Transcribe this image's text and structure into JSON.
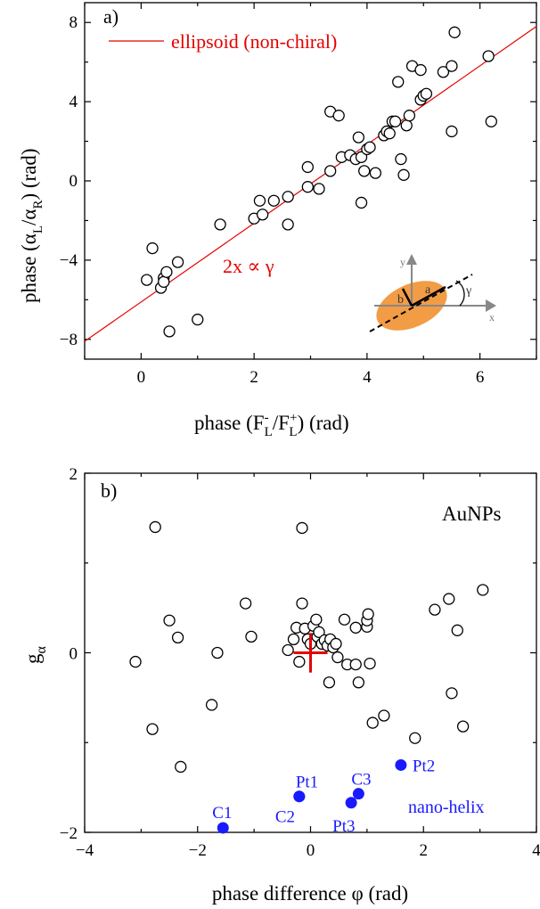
{
  "chart_data": [
    {
      "type": "scatter",
      "panel_label": "a)",
      "xlabel": {
        "pre": "phase (F",
        "sup1": "-",
        "sub1": "L",
        "mid": "/F",
        "sup2": "+",
        "sub2": "L",
        "post": ") (rad)"
      },
      "ylabel": {
        "pre": "phase (α",
        "sub1": "L",
        "mid": "/α",
        "sub2": "R",
        "post": ") (rad)"
      },
      "xlim": [
        -1,
        7
      ],
      "ylim": [
        -9,
        9
      ],
      "xticks": [
        0,
        2,
        4,
        6
      ],
      "xtick_labels": [
        "0",
        "2",
        "4",
        "6"
      ],
      "yticks": [
        -8,
        -4,
        0,
        4,
        8
      ],
      "ytick_labels": [
        "−8",
        "−4",
        "0",
        "4",
        "8"
      ],
      "legend": {
        "location": "top-left",
        "entries": [
          {
            "label": "ellipsoid (non-chiral)",
            "color": "#e60000",
            "marker": "line"
          }
        ]
      },
      "annotation": "2x ∝ γ",
      "fit_line": {
        "color": "#e60000",
        "x": [
          -1,
          7
        ],
        "y": [
          -8.1,
          7.8
        ]
      },
      "inset": {
        "label_y": "y",
        "label_x": "x",
        "label_a": "a",
        "label_b": "b",
        "label_gamma": "γ",
        "ellipse_color": "#f29c46",
        "axis_color": "#888888"
      },
      "points": [
        [
          0.1,
          -5.0
        ],
        [
          0.2,
          -3.4
        ],
        [
          0.35,
          -5.4
        ],
        [
          0.4,
          -4.9
        ],
        [
          0.4,
          -5.1
        ],
        [
          0.45,
          -4.6
        ],
        [
          0.5,
          -7.6
        ],
        [
          0.65,
          -4.1
        ],
        [
          1.0,
          -7.0
        ],
        [
          1.4,
          -2.2
        ],
        [
          2.0,
          -1.9
        ],
        [
          2.1,
          -1.0
        ],
        [
          2.15,
          -1.7
        ],
        [
          2.35,
          -1.0
        ],
        [
          2.6,
          -2.2
        ],
        [
          2.6,
          -0.8
        ],
        [
          2.95,
          -0.3
        ],
        [
          2.95,
          0.7
        ],
        [
          3.15,
          -0.4
        ],
        [
          3.35,
          0.5
        ],
        [
          3.35,
          3.5
        ],
        [
          3.5,
          3.3
        ],
        [
          3.55,
          1.2
        ],
        [
          3.7,
          1.3
        ],
        [
          3.8,
          1.1
        ],
        [
          3.85,
          2.2
        ],
        [
          3.9,
          1.2
        ],
        [
          3.9,
          -1.1
        ],
        [
          3.95,
          0.5
        ],
        [
          4.0,
          1.6
        ],
        [
          4.05,
          1.7
        ],
        [
          4.15,
          0.4
        ],
        [
          4.3,
          2.3
        ],
        [
          4.35,
          2.5
        ],
        [
          4.4,
          2.4
        ],
        [
          4.45,
          3.0
        ],
        [
          4.5,
          3.0
        ],
        [
          4.55,
          5.0
        ],
        [
          4.6,
          1.1
        ],
        [
          4.65,
          0.3
        ],
        [
          4.7,
          2.8
        ],
        [
          4.75,
          3.3
        ],
        [
          4.8,
          5.8
        ],
        [
          4.95,
          4.1
        ],
        [
          4.95,
          5.6
        ],
        [
          5.0,
          4.3
        ],
        [
          5.05,
          4.4
        ],
        [
          5.35,
          5.5
        ],
        [
          5.5,
          2.5
        ],
        [
          5.5,
          5.8
        ],
        [
          5.55,
          7.5
        ],
        [
          6.15,
          6.3
        ],
        [
          6.2,
          3.0
        ]
      ]
    },
    {
      "type": "scatter",
      "panel_label": "b)",
      "xlabel": "phase difference φ (rad)",
      "ylabel": {
        "base": "g",
        "sub": "α"
      },
      "xlim": [
        -4,
        4
      ],
      "ylim": [
        -2,
        2
      ],
      "xticks": [
        -4,
        -2,
        0,
        2,
        4
      ],
      "xtick_labels": [
        "−4",
        "−2",
        "0",
        "2",
        "4"
      ],
      "yticks": [
        -2,
        0,
        2
      ],
      "ytick_labels": [
        "−2",
        "0",
        "2"
      ],
      "annotations": {
        "top_right": "AuNPs",
        "bottom_right": "nano-helix"
      },
      "error_cross": {
        "x": 0,
        "y": 0,
        "xerr": 0.3,
        "yerr": 0.22,
        "color": "#e60000"
      },
      "points": [
        [
          -3.1,
          -0.1
        ],
        [
          -2.8,
          -0.85
        ],
        [
          -2.75,
          1.4
        ],
        [
          -2.5,
          0.36
        ],
        [
          -2.3,
          -1.27
        ],
        [
          -2.35,
          0.17
        ],
        [
          -1.75,
          -0.58
        ],
        [
          -1.65,
          0.0
        ],
        [
          -1.15,
          0.55
        ],
        [
          -1.05,
          0.18
        ],
        [
          -0.4,
          0.03
        ],
        [
          -0.3,
          0.15
        ],
        [
          -0.25,
          0.28
        ],
        [
          -0.2,
          -0.1
        ],
        [
          -0.15,
          1.39
        ],
        [
          -0.15,
          0.55
        ],
        [
          -0.1,
          0.27
        ],
        [
          -0.05,
          0.15
        ],
        [
          0.0,
          0.1
        ],
        [
          0.05,
          0.3
        ],
        [
          0.1,
          0.37
        ],
        [
          0.12,
          0.18
        ],
        [
          0.15,
          0.23
        ],
        [
          0.2,
          0.1
        ],
        [
          0.25,
          0.14
        ],
        [
          0.3,
          0.08
        ],
        [
          0.33,
          -0.33
        ],
        [
          0.35,
          0.15
        ],
        [
          0.4,
          0.06
        ],
        [
          0.45,
          0.1
        ],
        [
          0.48,
          -0.05
        ],
        [
          0.6,
          0.37
        ],
        [
          0.65,
          -0.13
        ],
        [
          0.8,
          0.28
        ],
        [
          0.8,
          -0.13
        ],
        [
          0.85,
          -0.33
        ],
        [
          1.0,
          0.29
        ],
        [
          1.0,
          0.36
        ],
        [
          1.02,
          0.43
        ],
        [
          1.05,
          -0.12
        ],
        [
          1.1,
          -0.78
        ],
        [
          1.3,
          -0.7
        ],
        [
          1.85,
          -0.95
        ],
        [
          2.2,
          0.48
        ],
        [
          2.45,
          0.6
        ],
        [
          2.5,
          -0.45
        ],
        [
          2.6,
          0.25
        ],
        [
          2.7,
          -0.82
        ],
        [
          3.05,
          0.7
        ]
      ],
      "highlighted": [
        {
          "label": "C1",
          "x": -1.55,
          "y": -1.95,
          "color": "#1a1aff"
        },
        {
          "label": "C2",
          "x": -0.2,
          "y": -1.6,
          "color": "#1a1aff"
        },
        {
          "label": "Pt1",
          "x": -0.2,
          "y": -1.6,
          "color": "#1a1aff"
        },
        {
          "label": "Pt3",
          "x": 0.72,
          "y": -1.67,
          "color": "#1a1aff"
        },
        {
          "label": "C3",
          "x": 0.85,
          "y": -1.57,
          "color": "#1a1aff"
        },
        {
          "label": "Pt2",
          "x": 1.6,
          "y": -1.25,
          "color": "#1a1aff"
        }
      ]
    }
  ]
}
